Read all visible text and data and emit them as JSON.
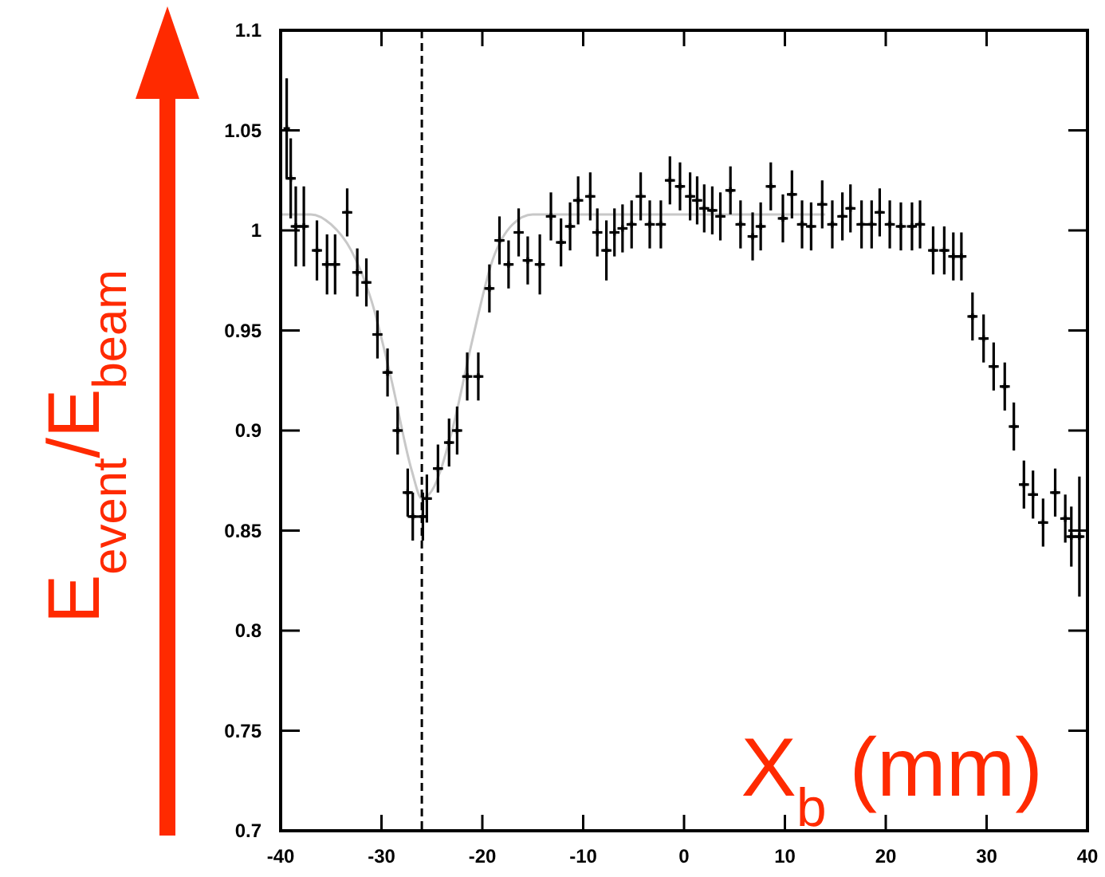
{
  "chart_data": {
    "type": "scatter",
    "xlabel": "X$_{b}$ (mm)",
    "ylabel": "E$_{event}$/E$_{beam}$",
    "xlim": [
      -40,
      40
    ],
    "xticks": [
      -40,
      -30,
      -20,
      -10,
      0,
      10,
      20,
      30,
      40
    ],
    "ylim": [
      0.7,
      1.1
    ],
    "yticks": [
      0.7,
      0.75,
      0.8,
      0.85,
      0.9,
      0.95,
      1,
      1.05,
      1.1
    ],
    "grid": false,
    "ref_lines": [
      {
        "axis": "x",
        "value": -26,
        "line_style": "dashed",
        "color": "#000000"
      }
    ],
    "series": [
      {
        "color": "#000000",
        "marker": "cross",
        "x": [
          -39.4,
          -39,
          -38.5,
          -37.7,
          -36.4,
          -35.4,
          -34.6,
          -33.4,
          -32.4,
          -31.5,
          -30.4,
          -29.4,
          -28.4,
          -27.4,
          -26.9,
          -25.9,
          -25.5,
          -24.4,
          -23.3,
          -22.5,
          -21.5,
          -20.4,
          -19.3,
          -18.3,
          -17.4,
          -16.4,
          -15.5,
          -14.3,
          -13.2,
          -12.2,
          -11.3,
          -10.5,
          -9.3,
          -8.6,
          -7.7,
          -6.9,
          -6.1,
          -5.2,
          -4.3,
          -3.4,
          -2.3,
          -1.4,
          -0.4,
          0.6,
          1.3,
          2,
          2.8,
          3.6,
          4.6,
          5.6,
          6.8,
          7.6,
          8.6,
          9.8,
          10.7,
          11.7,
          12.6,
          13.7,
          14.7,
          15.7,
          16.5,
          17.6,
          18.6,
          19.4,
          20.4,
          21.5,
          22.6,
          23.4,
          24.7,
          25.8,
          26.7,
          27.5,
          28.6,
          29.7,
          30.7,
          31.8,
          32.7,
          33.7,
          34.6,
          35.6,
          36.8,
          37.8,
          38.4,
          39.2
        ],
        "values": [
          1.051,
          1.026,
          1.002,
          1.002,
          0.99,
          0.983,
          0.983,
          1.009,
          0.979,
          0.974,
          0.948,
          0.929,
          0.9,
          0.869,
          0.857,
          0.857,
          0.866,
          0.881,
          0.894,
          0.9,
          0.927,
          0.927,
          0.971,
          0.995,
          0.983,
          0.999,
          0.985,
          0.983,
          1.007,
          0.994,
          1.002,
          1.015,
          1.017,
          0.999,
          0.99,
          0.999,
          1.001,
          1.003,
          1.017,
          1.003,
          1.003,
          1.025,
          1.022,
          1.017,
          1.015,
          1.011,
          1.01,
          1.007,
          1.02,
          1.003,
          0.997,
          1.002,
          1.022,
          1.006,
          1.018,
          1.003,
          1.002,
          1.013,
          1.003,
          1.007,
          1.011,
          1.003,
          1.003,
          1.009,
          1.003,
          1.002,
          1.002,
          1.003,
          0.99,
          0.99,
          0.987,
          0.987,
          0.957,
          0.946,
          0.932,
          0.922,
          0.902,
          0.873,
          0.868,
          0.854,
          0.869,
          0.856,
          0.847,
          0.847
        ],
        "errors": [
          0.025,
          0.02,
          0.02,
          0.02,
          0.015,
          0.015,
          0.015,
          0.012,
          0.012,
          0.012,
          0.012,
          0.012,
          0.012,
          0.012,
          0.012,
          0.012,
          0.012,
          0.012,
          0.012,
          0.012,
          0.012,
          0.012,
          0.012,
          0.012,
          0.012,
          0.012,
          0.012,
          0.015,
          0.012,
          0.012,
          0.012,
          0.012,
          0.012,
          0.012,
          0.015,
          0.012,
          0.012,
          0.012,
          0.012,
          0.012,
          0.012,
          0.012,
          0.012,
          0.012,
          0.012,
          0.012,
          0.012,
          0.012,
          0.012,
          0.012,
          0.012,
          0.012,
          0.012,
          0.012,
          0.012,
          0.012,
          0.012,
          0.012,
          0.012,
          0.012,
          0.012,
          0.012,
          0.012,
          0.012,
          0.012,
          0.012,
          0.012,
          0.012,
          0.012,
          0.012,
          0.012,
          0.012,
          0.012,
          0.012,
          0.012,
          0.012,
          0.012,
          0.012,
          0.012,
          0.012,
          0.012,
          0.012,
          0.015,
          0.03
        ],
        "xerrors": [
          null,
          0.5,
          0.5,
          0.5,
          0.5,
          0.5,
          0.5,
          0.5,
          0.5,
          0.5,
          0.5,
          0.5,
          0.5,
          0.5,
          0.5,
          0.5,
          0.5,
          0.5,
          0.5,
          0.5,
          0.5,
          0.5,
          0.5,
          0.5,
          0.5,
          0.5,
          0.5,
          0.5,
          0.5,
          0.5,
          0.5,
          0.5,
          0.5,
          0.5,
          0.5,
          0.5,
          0.5,
          0.5,
          0.5,
          0.5,
          0.5,
          0.5,
          0.5,
          0.5,
          0.5,
          0.5,
          0.5,
          0.5,
          0.5,
          0.5,
          0.5,
          0.5,
          0.5,
          0.5,
          0.5,
          0.5,
          0.5,
          0.5,
          0.5,
          0.5,
          0.5,
          0.5,
          0.5,
          0.5,
          0.5,
          0.5,
          0.5,
          0.5,
          0.5,
          0.5,
          0.5,
          0.5,
          0.5,
          0.5,
          0.5,
          0.5,
          0.5,
          0.5,
          0.5,
          0.5,
          0.5,
          0.5,
          0.5,
          0.5
        ]
      },
      {
        "type": "line",
        "color": "#c8c8c8",
        "marker": "none",
        "x": [
          -40,
          -37,
          -35,
          -33,
          -31,
          -29,
          -27,
          -26,
          -25,
          -23,
          -21,
          -19,
          -17,
          -15,
          -10,
          0,
          14
        ],
        "values": [
          1.008,
          1.008,
          1.003,
          0.99,
          0.965,
          0.925,
          0.88,
          0.866,
          0.87,
          0.9,
          0.945,
          0.985,
          1.003,
          1.008,
          1.008,
          1.008,
          1.008
        ]
      }
    ]
  }
}
